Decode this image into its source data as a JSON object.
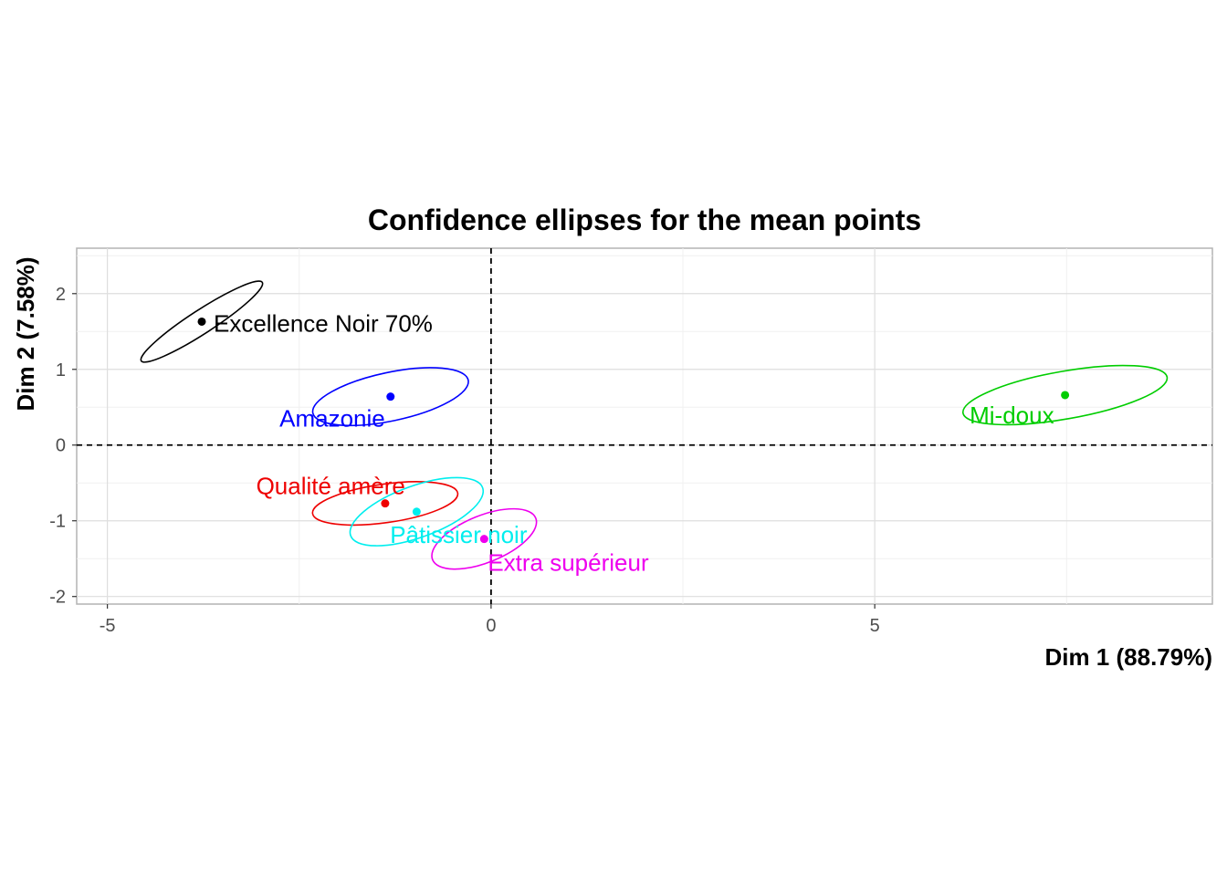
{
  "chart_data": {
    "type": "scatter",
    "title": "Confidence ellipses for the mean points",
    "xlabel": "Dim 1 (88.79%)",
    "ylabel": "Dim 2 (7.58%)",
    "xlim": [
      -5.4,
      9.4
    ],
    "ylim": [
      -2.1,
      2.6
    ],
    "xticks": [
      -5,
      0,
      5
    ],
    "yticks": [
      -2,
      -1,
      0,
      1,
      2
    ],
    "xtick_labels": [
      "-5",
      "0",
      "5"
    ],
    "ytick_labels": [
      "-2",
      "-1",
      "0",
      "1",
      "2"
    ],
    "grid": true,
    "reference_lines": {
      "x": 0,
      "y": 0,
      "style": "dashed"
    },
    "groups": [
      {
        "name": "Excellence Noir 70%",
        "color": "#000000",
        "x": -3.77,
        "y": 1.63,
        "ellipse": {
          "cx": -3.77,
          "cy": 1.63,
          "rx": 1.88,
          "ry": 0.31,
          "angle_deg": 33
        }
      },
      {
        "name": "Amazonie",
        "color": "#0000ff",
        "x": -1.31,
        "y": 0.64,
        "ellipse": {
          "cx": -1.31,
          "cy": 0.64,
          "rx": 2.07,
          "ry": 0.64,
          "angle_deg": 12
        }
      },
      {
        "name": "Qualité amère",
        "color": "#ee0000",
        "x": -1.38,
        "y": -0.77,
        "ellipse": {
          "cx": -1.38,
          "cy": -0.77,
          "rx": 1.91,
          "ry": 0.51,
          "angle_deg": 8
        }
      },
      {
        "name": "Pâtissier noir",
        "color": "#00eeee",
        "x": -0.97,
        "y": -0.88,
        "ellipse": {
          "cx": -0.97,
          "cy": -0.88,
          "rx": 1.83,
          "ry": 0.68,
          "angle_deg": 20
        }
      },
      {
        "name": "Extra supérieur",
        "color": "#ee00ee",
        "x": -0.09,
        "y": -1.24,
        "ellipse": {
          "cx": -0.09,
          "cy": -1.24,
          "rx": 1.45,
          "ry": 0.62,
          "angle_deg": 22
        }
      },
      {
        "name": "Mi-doux",
        "color": "#00cd00",
        "x": 7.48,
        "y": 0.66,
        "ellipse": {
          "cx": 7.48,
          "cy": 0.66,
          "rx": 2.7,
          "ry": 0.63,
          "angle_deg": 10
        }
      }
    ]
  }
}
